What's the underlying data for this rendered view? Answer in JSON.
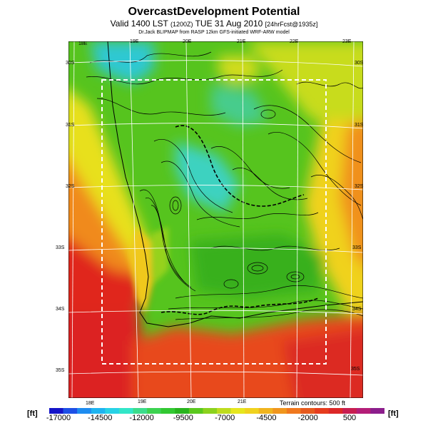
{
  "header": {
    "title": "OvercastDevelopment Potential",
    "valid_prefix": "Valid 1400 LST",
    "valid_utc": "(1200Z)",
    "valid_date": "TUE 31 Aug 2010",
    "forecast_tag": "[24hrFcst@1935z]",
    "byline": "Dr.Jack BLIPMAP from RASP 12km GFS-initiated WRF-ARW model"
  },
  "map": {
    "top_lon_labels": [
      "18E",
      "19E",
      "20E",
      "21E",
      "22E",
      "23E"
    ],
    "bottom_lon_labels": [
      "18E",
      "19E",
      "20E",
      "21E"
    ],
    "left_lat_labels": [
      "30S",
      "31S",
      "32S",
      "33S",
      "34S",
      "35S"
    ],
    "right_lat_labels": [
      "30S",
      "31S",
      "32S",
      "33S",
      "34S",
      "35S"
    ],
    "terrain_note": "Terrain contours: 500 ft",
    "colors": {
      "ocean_red": "#e0281e",
      "coastal_orange": "#f08a1a",
      "yellow": "#f2e21e",
      "green": "#5cc81e",
      "dark_green": "#32a81e",
      "cyan": "#3cd6c8",
      "grid": "#ffffff",
      "inner_box": "#ffffff",
      "contour": "#000000"
    }
  },
  "colorbar": {
    "unit_left": "[ft]",
    "unit_right": "[ft]",
    "labels": [
      "-17000",
      "-14500",
      "-12000",
      "-9500",
      "-7000",
      "-4500",
      "-2000",
      "500"
    ],
    "colors": [
      "#1414c8",
      "#1e50e6",
      "#1e8cf0",
      "#1eb4f0",
      "#28d2e6",
      "#32e6c8",
      "#3cdc8c",
      "#3cd250",
      "#32c832",
      "#28b41e",
      "#5ac81e",
      "#8cd21e",
      "#bedc1e",
      "#e6e61e",
      "#f0d21e",
      "#f0b41e",
      "#f0961e",
      "#f0781e",
      "#e65a1e",
      "#e63c1e",
      "#dc2828",
      "#c81e50",
      "#b41e78",
      "#8c1e8c"
    ]
  }
}
